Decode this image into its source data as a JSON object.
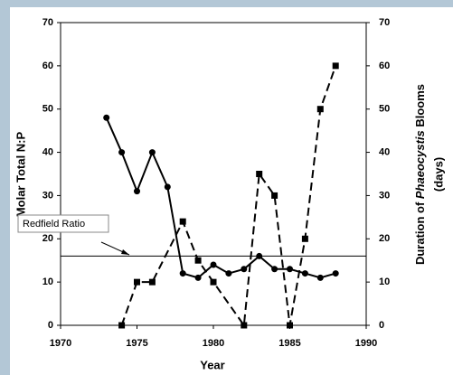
{
  "chart_data": {
    "type": "line",
    "x_label": "Year",
    "y_label": "Molar Total N:P",
    "y2_label_parts": [
      "Duration of ",
      "Phaeocystis",
      " Blooms"
    ],
    "y2_label_unit": "(days)",
    "xlim": [
      1970,
      1990
    ],
    "xticks": [
      1970,
      1975,
      1980,
      1985,
      1990
    ],
    "ylim": [
      0,
      70
    ],
    "yticks": [
      0,
      10,
      20,
      30,
      40,
      50,
      60,
      70
    ],
    "y2lim": [
      0,
      70
    ],
    "y2ticks": [
      0,
      10,
      20,
      30,
      40,
      50,
      60,
      70
    ],
    "series": [
      {
        "marker": "circle",
        "dash": false,
        "color": "#000000",
        "x": [
          1973,
          1974,
          1975,
          1976,
          1977,
          1978,
          1979,
          1980,
          1981,
          1982,
          1983,
          1984,
          1985,
          1986,
          1987,
          1988
        ],
        "values": [
          48,
          40,
          31,
          40,
          32,
          12,
          11,
          14,
          12,
          13,
          16,
          13,
          13,
          12,
          11,
          12
        ]
      },
      {
        "marker": "square",
        "dash": true,
        "color": "#000000",
        "axis": "y2",
        "x": [
          1974,
          1975,
          1976,
          1978,
          1979,
          1980,
          1982,
          1983,
          1984,
          1985,
          1986,
          1987,
          1988
        ],
        "values": [
          0,
          10,
          10,
          24,
          15,
          10,
          0,
          35,
          30,
          0,
          20,
          50,
          60
        ]
      }
    ],
    "reference_line": {
      "label": "Redfield Ratio",
      "value": 16
    }
  }
}
